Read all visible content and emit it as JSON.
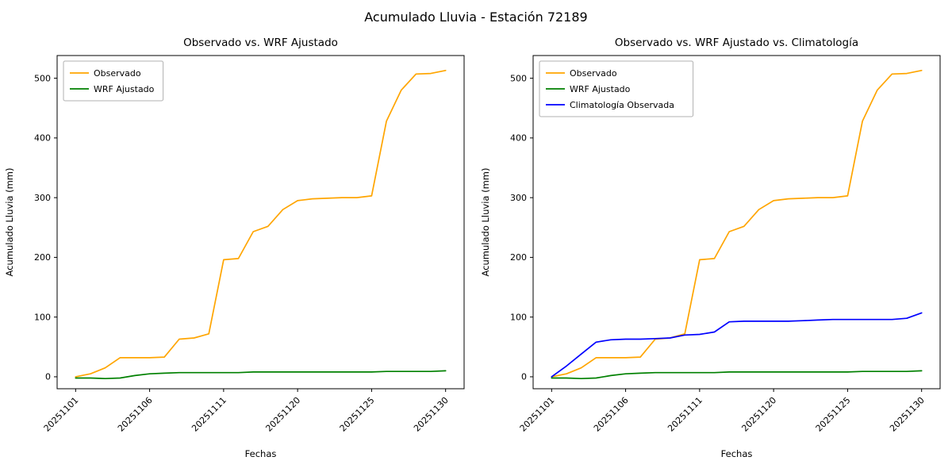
{
  "figure": {
    "suptitle": "Acumulado Lluvia - Estación 72189"
  },
  "chart_data": [
    {
      "type": "line",
      "title": "Observado vs. WRF Ajustado",
      "xlabel": "Fechas",
      "ylabel": "Acumulado Lluvia (mm)",
      "ylim": [
        -20,
        538
      ],
      "yticks": [
        0,
        100,
        200,
        300,
        400,
        500
      ],
      "x_tick_indices": [
        0,
        5,
        10,
        15,
        20,
        25
      ],
      "x_tick_labels": [
        "20251101",
        "20251106",
        "20251111",
        "20251120",
        "20251125",
        "20251130"
      ],
      "grid": false,
      "legend_position": "upper left",
      "series": [
        {
          "name": "Observado",
          "color": "#FFA500",
          "values": [
            0,
            5,
            15,
            32,
            32,
            32,
            33,
            63,
            65,
            72,
            196,
            198,
            243,
            252,
            280,
            295,
            298,
            299,
            300,
            300,
            303,
            428,
            480,
            507,
            508,
            513
          ]
        },
        {
          "name": "WRF Ajustado",
          "color": "#008000",
          "values": [
            -2,
            -2,
            -3,
            -2,
            2,
            5,
            6,
            7,
            7,
            7,
            7,
            7,
            8,
            8,
            8,
            8,
            8,
            8,
            8,
            8,
            8,
            9,
            9,
            9,
            9,
            10
          ]
        }
      ]
    },
    {
      "type": "line",
      "title": "Observado vs. WRF Ajustado vs. Climatología",
      "xlabel": "Fechas",
      "ylabel": "Acumulado Lluvia (mm)",
      "ylim": [
        -20,
        538
      ],
      "yticks": [
        0,
        100,
        200,
        300,
        400,
        500
      ],
      "x_tick_indices": [
        0,
        5,
        10,
        15,
        20,
        25
      ],
      "x_tick_labels": [
        "20251101",
        "20251106",
        "20251111",
        "20251120",
        "20251125",
        "20251130"
      ],
      "grid": false,
      "legend_position": "upper left",
      "series": [
        {
          "name": "Observado",
          "color": "#FFA500",
          "values": [
            0,
            5,
            15,
            32,
            32,
            32,
            33,
            63,
            65,
            72,
            196,
            198,
            243,
            252,
            280,
            295,
            298,
            299,
            300,
            300,
            303,
            428,
            480,
            507,
            508,
            513
          ]
        },
        {
          "name": "WRF Ajustado",
          "color": "#008000",
          "values": [
            -2,
            -2,
            -3,
            -2,
            2,
            5,
            6,
            7,
            7,
            7,
            7,
            7,
            8,
            8,
            8,
            8,
            8,
            8,
            8,
            8,
            8,
            9,
            9,
            9,
            9,
            10
          ]
        },
        {
          "name": "Climatología Observada",
          "color": "#0000FF",
          "values": [
            0,
            18,
            38,
            58,
            62,
            63,
            63,
            64,
            65,
            70,
            71,
            75,
            92,
            93,
            93,
            93,
            93,
            94,
            95,
            96,
            96,
            96,
            96,
            96,
            98,
            107
          ]
        }
      ]
    }
  ]
}
